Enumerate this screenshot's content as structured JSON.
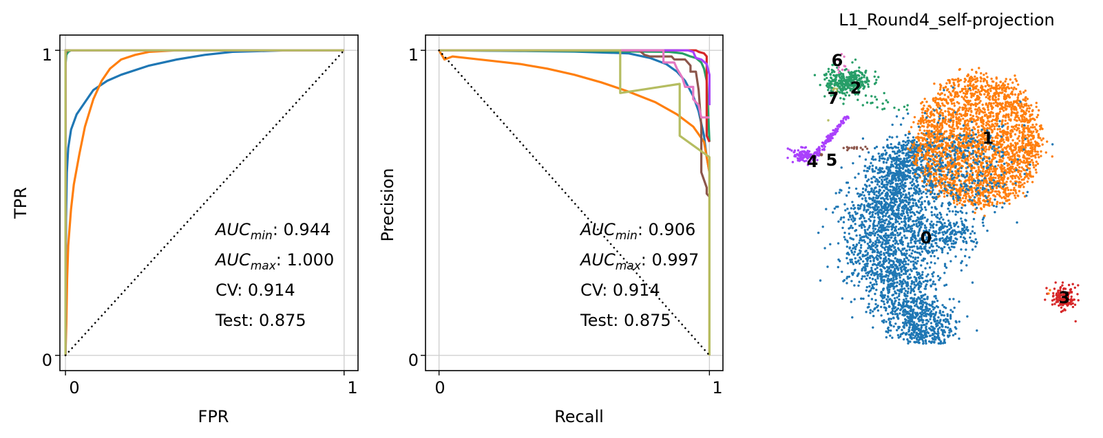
{
  "palette": {
    "c0": "#1f77b4",
    "c1": "#ff7f0e",
    "c2": "#279e68",
    "c3": "#d62728",
    "c4": "#aa40fc",
    "c5": "#8c564b",
    "c6": "#e377c2",
    "c7": "#b5bd61",
    "grid": "#d0d0d0",
    "axis": "#000000"
  },
  "chart_data": [
    {
      "id": "roc",
      "type": "line",
      "title": "",
      "xlabel": "FPR",
      "ylabel": "TPR",
      "xlim": [
        -0.02,
        1.05
      ],
      "ylim": [
        -0.05,
        1.05
      ],
      "xticks": [
        0,
        1
      ],
      "xticklabels": [
        "0",
        "1"
      ],
      "yticks": [
        0,
        1
      ],
      "yticklabels": [
        "0",
        "1"
      ],
      "grid": true,
      "legend": "none",
      "annotations": {
        "auc_min_label": "AUC",
        "auc_min_sub": "min",
        "auc_min_value": ": 0.944",
        "auc_max_label": "AUC",
        "auc_max_sub": "max",
        "auc_max_value": ": 1.000",
        "cv": "CV: 0.914",
        "test": "Test: 0.875"
      },
      "series": [
        {
          "name": "0",
          "color": "#1f77b4",
          "x": [
            0,
            0.002,
            0.005,
            0.01,
            0.02,
            0.04,
            0.07,
            0.1,
            0.15,
            0.2,
            0.3,
            0.4,
            0.5,
            0.6,
            0.8,
            1.0
          ],
          "y": [
            0,
            0.45,
            0.6,
            0.68,
            0.74,
            0.79,
            0.83,
            0.87,
            0.9,
            0.92,
            0.95,
            0.97,
            0.985,
            0.995,
            1.0,
            1.0
          ]
        },
        {
          "name": "1",
          "color": "#ff7f0e",
          "x": [
            0,
            0.003,
            0.006,
            0.01,
            0.02,
            0.03,
            0.05,
            0.07,
            0.1,
            0.13,
            0.16,
            0.2,
            0.25,
            0.3,
            0.4,
            0.5,
            1.0
          ],
          "y": [
            0,
            0.1,
            0.25,
            0.36,
            0.48,
            0.56,
            0.66,
            0.75,
            0.84,
            0.9,
            0.94,
            0.97,
            0.985,
            0.995,
            1.0,
            1.0,
            1.0
          ]
        },
        {
          "name": "2",
          "color": "#279e68",
          "x": [
            0,
            0,
            0.003,
            0.01,
            0.02,
            1.0
          ],
          "y": [
            0,
            0.95,
            0.985,
            0.995,
            1.0,
            1.0
          ]
        },
        {
          "name": "3",
          "color": "#d62728",
          "x": [
            0,
            0,
            0.005,
            1.0
          ],
          "y": [
            0,
            0.99,
            1.0,
            1.0
          ]
        },
        {
          "name": "4",
          "color": "#aa40fc",
          "x": [
            0,
            0,
            1.0
          ],
          "y": [
            0,
            1.0,
            1.0
          ]
        },
        {
          "name": "5",
          "color": "#8c564b",
          "x": [
            0,
            0,
            1.0
          ],
          "y": [
            0,
            1.0,
            1.0
          ]
        },
        {
          "name": "6",
          "color": "#e377c2",
          "x": [
            0,
            0,
            1.0
          ],
          "y": [
            0,
            1.0,
            1.0
          ]
        },
        {
          "name": "7",
          "color": "#b5bd61",
          "x": [
            0,
            0,
            1.0
          ],
          "y": [
            0,
            1.0,
            1.0
          ]
        },
        {
          "name": "chance",
          "color": "#000000",
          "dotted": true,
          "x": [
            0,
            1
          ],
          "y": [
            0,
            1
          ]
        }
      ]
    },
    {
      "id": "pr",
      "type": "line",
      "title": "",
      "xlabel": "Recall",
      "ylabel": "Precision",
      "xlim": [
        -0.05,
        1.05
      ],
      "ylim": [
        -0.05,
        1.05
      ],
      "xticks": [
        0,
        1
      ],
      "xticklabels": [
        "0",
        "1"
      ],
      "yticks": [
        0,
        1
      ],
      "yticklabels": [
        "0",
        "1"
      ],
      "grid": true,
      "legend": "none",
      "annotations": {
        "auc_min_label": "AUC",
        "auc_min_sub": "min",
        "auc_min_value": ": 0.906",
        "auc_max_label": "AUC",
        "auc_max_sub": "max",
        "auc_max_value": ": 0.997",
        "cv": "CV: 0.914",
        "test": "Test: 0.875"
      },
      "series": [
        {
          "name": "0",
          "color": "#1f77b4",
          "x": [
            0,
            0.3,
            0.5,
            0.7,
            0.78,
            0.84,
            0.88,
            0.91,
            0.94,
            0.96,
            0.98,
            0.99,
            1.0
          ],
          "y": [
            1.0,
            0.998,
            0.996,
            0.99,
            0.975,
            0.955,
            0.93,
            0.9,
            0.85,
            0.8,
            0.72,
            0.65,
            0.6
          ]
        },
        {
          "name": "1",
          "color": "#ff7f0e",
          "x": [
            0,
            0.01,
            0.02,
            0.05,
            0.1,
            0.2,
            0.3,
            0.4,
            0.5,
            0.6,
            0.7,
            0.8,
            0.88,
            0.94,
            0.98,
            1.0,
            1.0
          ],
          "y": [
            1.0,
            0.985,
            0.97,
            0.98,
            0.975,
            0.965,
            0.955,
            0.94,
            0.92,
            0.895,
            0.865,
            0.83,
            0.79,
            0.75,
            0.7,
            0.6,
            0.0
          ]
        },
        {
          "name": "2",
          "color": "#279e68",
          "x": [
            0,
            0.6,
            0.85,
            0.9,
            0.93,
            0.95,
            0.97,
            0.98,
            0.99,
            1.0
          ],
          "y": [
            1.0,
            0.997,
            0.995,
            0.99,
            0.98,
            0.975,
            0.96,
            0.94,
            0.9,
            0.7
          ]
        },
        {
          "name": "3",
          "color": "#d62728",
          "x": [
            0,
            0.9,
            0.95,
            0.96,
            0.98,
            0.99,
            0.99,
            1.0
          ],
          "y": [
            1.0,
            1.0,
            1.0,
            0.995,
            0.99,
            0.98,
            0.72,
            0.7
          ]
        },
        {
          "name": "4",
          "color": "#aa40fc",
          "x": [
            0,
            0.92,
            0.94,
            0.95,
            0.97,
            0.99,
            1.0,
            1.0
          ],
          "y": [
            1.0,
            1.0,
            0.995,
            0.975,
            0.97,
            0.955,
            0.92,
            0.82
          ]
        },
        {
          "name": "5",
          "color": "#8c564b",
          "x": [
            0,
            0.74,
            0.76,
            0.78,
            0.86,
            0.87,
            0.91,
            0.93,
            0.93,
            0.95,
            0.96,
            0.97,
            0.97,
            0.99,
            0.99,
            1.0
          ],
          "y": [
            1.0,
            1.0,
            0.985,
            0.98,
            0.98,
            0.97,
            0.97,
            0.95,
            0.93,
            0.93,
            0.87,
            0.75,
            0.6,
            0.55,
            0.53,
            0.52
          ]
        },
        {
          "name": "6",
          "color": "#e377c2",
          "x": [
            0,
            0.83,
            0.83,
            0.87,
            0.88,
            0.9,
            0.91,
            0.94,
            0.94,
            0.96,
            0.97,
            0.99,
            1.0
          ],
          "y": [
            1.0,
            1.0,
            0.96,
            0.96,
            0.94,
            0.91,
            0.88,
            0.88,
            0.84,
            0.82,
            0.78,
            0.78,
            0.78
          ]
        },
        {
          "name": "7",
          "color": "#b5bd61",
          "x": [
            0,
            0.67,
            0.67,
            0.89,
            0.89,
            1.0,
            1.0
          ],
          "y": [
            1.0,
            1.0,
            0.86,
            0.89,
            0.72,
            0.65,
            0.0
          ]
        },
        {
          "name": "chance",
          "color": "#000000",
          "dotted": true,
          "x": [
            0,
            1
          ],
          "y": [
            1,
            0
          ]
        }
      ]
    },
    {
      "id": "umap",
      "type": "scatter",
      "title": "L1_Round4_self-projection",
      "xlabel": "",
      "ylabel": "",
      "grid": false,
      "legend": "on data",
      "clusters": [
        {
          "label": "0",
          "color": "#1f77b4"
        },
        {
          "label": "1",
          "color": "#ff7f0e"
        },
        {
          "label": "2",
          "color": "#279e68"
        },
        {
          "label": "3",
          "color": "#d62728"
        },
        {
          "label": "4",
          "color": "#aa40fc"
        },
        {
          "label": "5",
          "color": "#8c564b"
        },
        {
          "label": "6",
          "color": "#e377c2"
        },
        {
          "label": "7",
          "color": "#b5bd61"
        }
      ]
    }
  ]
}
